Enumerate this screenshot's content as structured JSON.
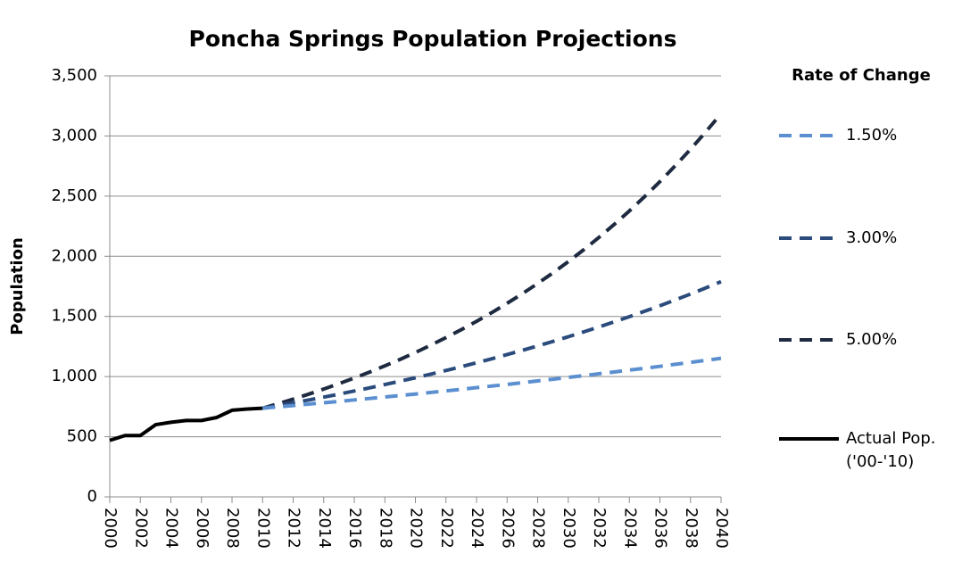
{
  "chart_data": {
    "type": "line",
    "title": "Poncha Springs Population Projections",
    "y_label": "Population",
    "legend_title": "Rate of Change",
    "legend": "right",
    "grid": true,
    "x": [
      2000,
      2001,
      2002,
      2003,
      2004,
      2005,
      2006,
      2007,
      2008,
      2009,
      2010,
      2011,
      2012,
      2013,
      2014,
      2015,
      2016,
      2017,
      2018,
      2019,
      2020,
      2021,
      2022,
      2023,
      2024,
      2025,
      2026,
      2027,
      2028,
      2029,
      2030,
      2031,
      2032,
      2033,
      2034,
      2035,
      2036,
      2037,
      2038,
      2039,
      2040
    ],
    "xlim": [
      2000,
      2040
    ],
    "xticks": [
      2000,
      2002,
      2004,
      2006,
      2008,
      2010,
      2012,
      2014,
      2016,
      2018,
      2020,
      2022,
      2024,
      2026,
      2028,
      2030,
      2032,
      2034,
      2036,
      2038,
      2040
    ],
    "ylim": [
      0,
      3500
    ],
    "yticks": [
      0,
      500,
      {
        "value": 1000,
        "label": "1,000"
      },
      {
        "value": 1500,
        "label": "1,500"
      },
      {
        "value": 2000,
        "label": "2,000"
      },
      {
        "value": 2500,
        "label": "2,500"
      },
      {
        "value": 3000,
        "label": "3,000"
      },
      {
        "value": 3500,
        "label": "3,500"
      }
    ],
    "series": [
      {
        "name": "1.50%",
        "color": "#5b8fd0",
        "dashed": true,
        "values": [
          null,
          null,
          null,
          null,
          null,
          null,
          null,
          null,
          null,
          null,
          737,
          748,
          759,
          771,
          782,
          794,
          806,
          818,
          830,
          843,
          855,
          868,
          881,
          894,
          908,
          921,
          935,
          949,
          964,
          978,
          993,
          1008,
          1023,
          1038,
          1054,
          1069,
          1085,
          1102,
          1118,
          1135,
          1152
        ]
      },
      {
        "name": "3.00%",
        "color": "#2a4b7c",
        "dashed": true,
        "values": [
          null,
          null,
          null,
          null,
          null,
          null,
          null,
          null,
          null,
          null,
          737,
          759,
          782,
          805,
          829,
          854,
          880,
          906,
          934,
          962,
          990,
          1020,
          1051,
          1082,
          1115,
          1148,
          1183,
          1218,
          1255,
          1292,
          1331,
          1371,
          1412,
          1455,
          1498,
          1543,
          1589,
          1637,
          1686,
          1737,
          1789
        ]
      },
      {
        "name": "5.00%",
        "color": "#1e2a40",
        "dashed": true,
        "values": [
          null,
          null,
          null,
          null,
          null,
          null,
          null,
          null,
          null,
          null,
          737,
          774,
          813,
          853,
          896,
          941,
          988,
          1037,
          1089,
          1143,
          1200,
          1261,
          1324,
          1390,
          1459,
          1532,
          1609,
          1689,
          1774,
          1862,
          1955,
          2053,
          2156,
          2264,
          2377,
          2496,
          2621,
          2752,
          2889,
          3034,
          3185
        ]
      },
      {
        "name": "Actual Pop. ('00-'10)",
        "color": "#000000",
        "dashed": false,
        "values": [
          470,
          510,
          510,
          600,
          620,
          635,
          635,
          660,
          720,
          730,
          737,
          null,
          null,
          null,
          null,
          null,
          null,
          null,
          null,
          null,
          null,
          null,
          null,
          null,
          null,
          null,
          null,
          null,
          null,
          null,
          null,
          null,
          null,
          null,
          null,
          null,
          null,
          null,
          null,
          null,
          null
        ]
      }
    ]
  }
}
